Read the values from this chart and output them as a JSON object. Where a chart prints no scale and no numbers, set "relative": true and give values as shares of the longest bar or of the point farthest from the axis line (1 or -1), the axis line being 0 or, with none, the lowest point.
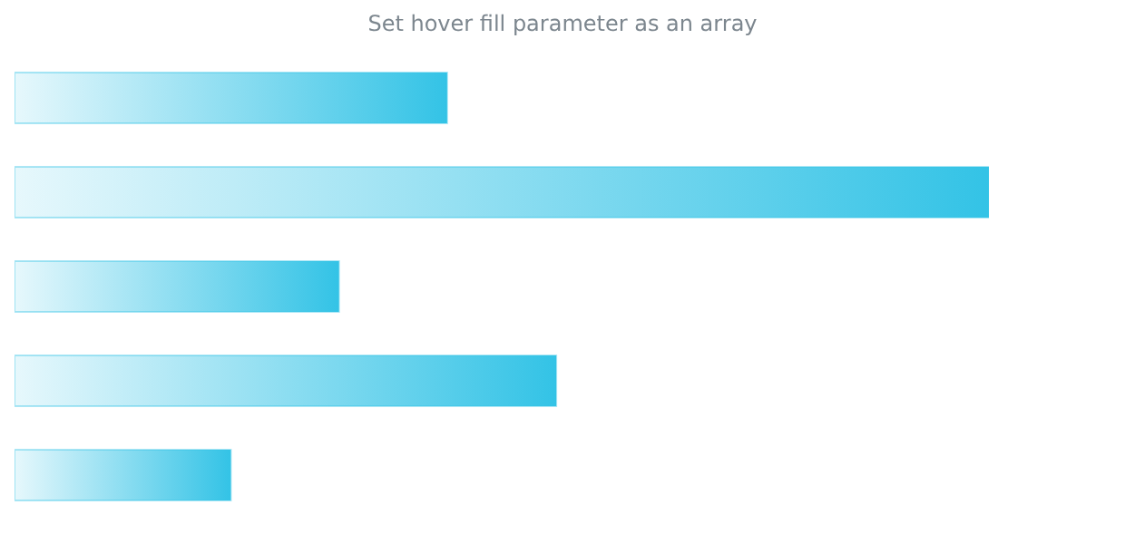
{
  "chart_data": {
    "type": "bar",
    "title": "Set hover fill parameter as an array",
    "orientation": "horizontal",
    "relative": true,
    "categories": [
      null,
      null,
      null,
      null,
      null
    ],
    "values": [
      0.444,
      1,
      0.333,
      0.556,
      0.222
    ],
    "color": "#33c3e6"
  }
}
